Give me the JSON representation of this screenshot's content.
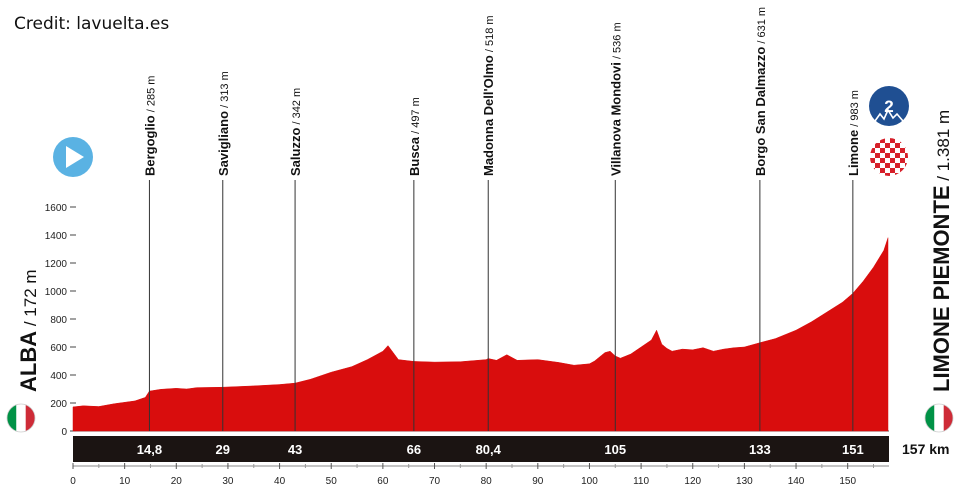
{
  "credit": "Credit: lavuelta.es",
  "start": {
    "name": "ALBA",
    "alt": "/ 172 m",
    "flag": "italy-flag",
    "icon": "start-play-icon"
  },
  "finish": {
    "name": "LIMONE PIEMONTE",
    "alt": "/ 1.381 m",
    "flag": "italy-flag",
    "icon": "finish-checkered-icon",
    "climb_icon": "category-2-climb-icon",
    "climb_category": "2"
  },
  "total_distance_label": "157 km",
  "colors": {
    "profile": "#d90d0d",
    "bar": "#1b1412",
    "start_icon": "#5ab2e3",
    "climb_icon": "#1f4f92",
    "finish_check": "#d6202a"
  },
  "chart_data": {
    "type": "area",
    "title": "",
    "xlabel": "",
    "ylabel": "",
    "xlim": [
      0,
      158
    ],
    "ylim": [
      0,
      1600
    ],
    "x_ticks": [
      0,
      10,
      20,
      30,
      40,
      50,
      60,
      70,
      80,
      90,
      100,
      110,
      120,
      130,
      140,
      150
    ],
    "y_ticks": [
      0,
      200,
      400,
      600,
      800,
      1000,
      1200,
      1400,
      1600
    ],
    "profile": {
      "x": [
        0,
        2,
        5,
        8,
        12,
        14,
        14.8,
        17,
        20,
        22,
        24,
        29,
        35,
        40,
        43,
        46,
        50,
        54,
        57,
        60,
        61,
        63,
        66,
        70,
        75,
        80,
        80.4,
        82,
        84,
        86,
        90,
        94,
        97,
        100,
        101,
        103,
        104,
        105,
        106,
        108,
        110,
        112,
        113,
        114,
        115,
        116,
        118,
        120,
        122,
        124,
        126,
        128,
        130,
        133,
        136,
        140,
        143,
        146,
        149,
        151,
        153,
        155,
        157,
        157.8
      ],
      "y": [
        172,
        180,
        175,
        195,
        215,
        240,
        285,
        298,
        305,
        300,
        310,
        313,
        322,
        332,
        342,
        370,
        420,
        460,
        510,
        570,
        610,
        510,
        497,
        492,
        495,
        510,
        518,
        505,
        545,
        505,
        510,
        490,
        470,
        480,
        500,
        560,
        570,
        536,
        520,
        550,
        600,
        650,
        720,
        620,
        590,
        570,
        585,
        580,
        595,
        570,
        585,
        595,
        600,
        631,
        660,
        720,
        780,
        850,
        920,
        983,
        1070,
        1170,
        1290,
        1381
      ]
    },
    "waypoints": [
      {
        "name": "Bergoglio",
        "alt": "/ 285 m",
        "km": 14.8,
        "km_label": "14,8"
      },
      {
        "name": "Savigliano",
        "alt": "/ 313 m",
        "km": 29,
        "km_label": "29"
      },
      {
        "name": "Saluzzo",
        "alt": "/ 342 m",
        "km": 43,
        "km_label": "43"
      },
      {
        "name": "Busca",
        "alt": "/ 497 m",
        "km": 66,
        "km_label": "66"
      },
      {
        "name": "Madonna Dell'Olmo",
        "alt": "/ 518 m",
        "km": 80.4,
        "km_label": "80,4"
      },
      {
        "name": "Villanova Mondovi",
        "alt": "/ 536 m",
        "km": 105,
        "km_label": "105"
      },
      {
        "name": "Borgo San Dalmazzo",
        "alt": "/ 631 m",
        "km": 133,
        "km_label": "133"
      },
      {
        "name": "Limone",
        "alt": "/ 983 m",
        "km": 151,
        "km_label": "151"
      }
    ]
  }
}
